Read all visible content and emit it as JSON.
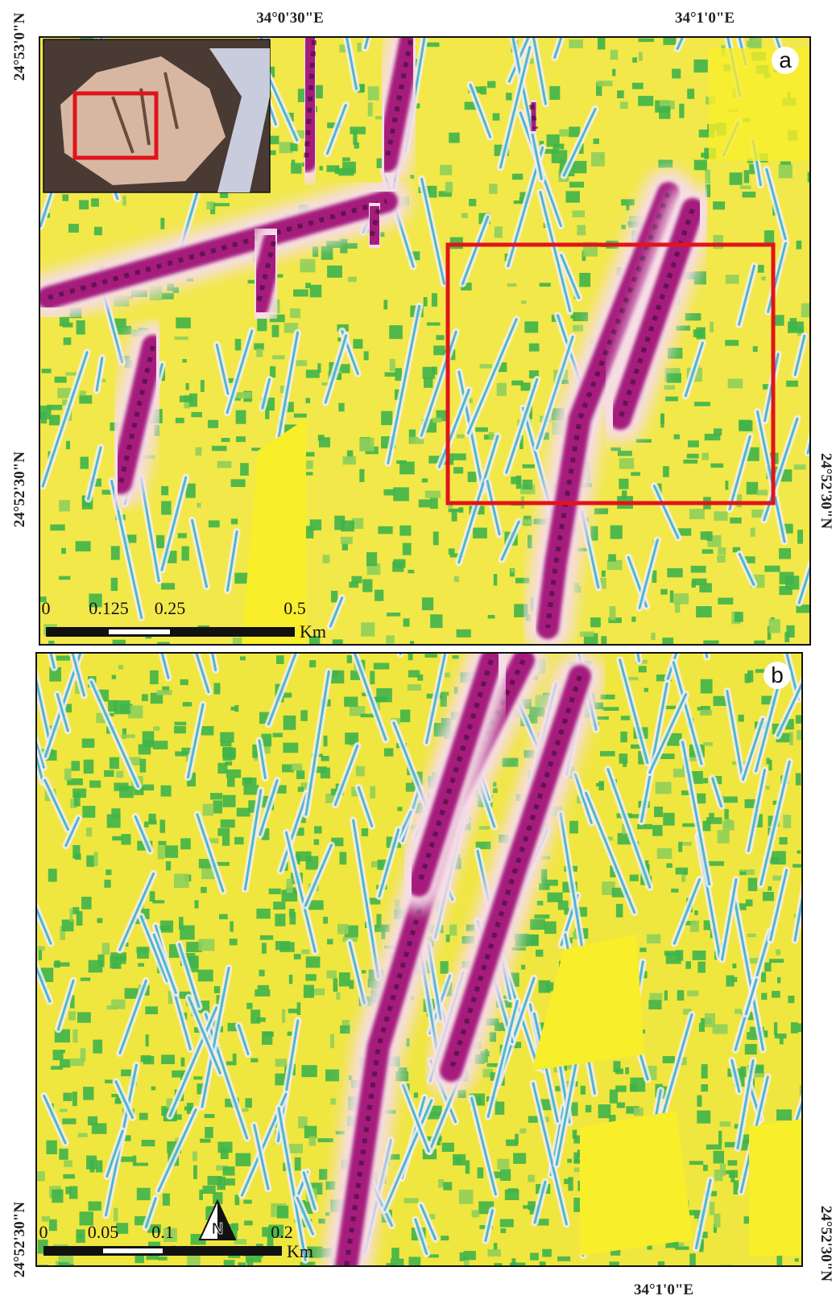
{
  "panel_a": {
    "label": "a",
    "top_labels": [
      "34°0'30\"E",
      "34°1'0\"E"
    ],
    "left_labels": [
      "24°53'0\"N",
      "24°52'30\"N"
    ],
    "right_label": "24°52'30\"N",
    "scale": {
      "ticks": [
        "0",
        "0.125",
        "0.25",
        "0.5"
      ],
      "unit": "Km"
    }
  },
  "panel_b": {
    "label": "b",
    "left_label": "24°52'30\"N",
    "right_label": "24°52'30\"N",
    "bottom_label": "34°1'0\"E",
    "scale": {
      "ticks": [
        "0",
        "0.05",
        "0.1",
        "0.2"
      ],
      "unit": "Km"
    },
    "north": "N"
  }
}
